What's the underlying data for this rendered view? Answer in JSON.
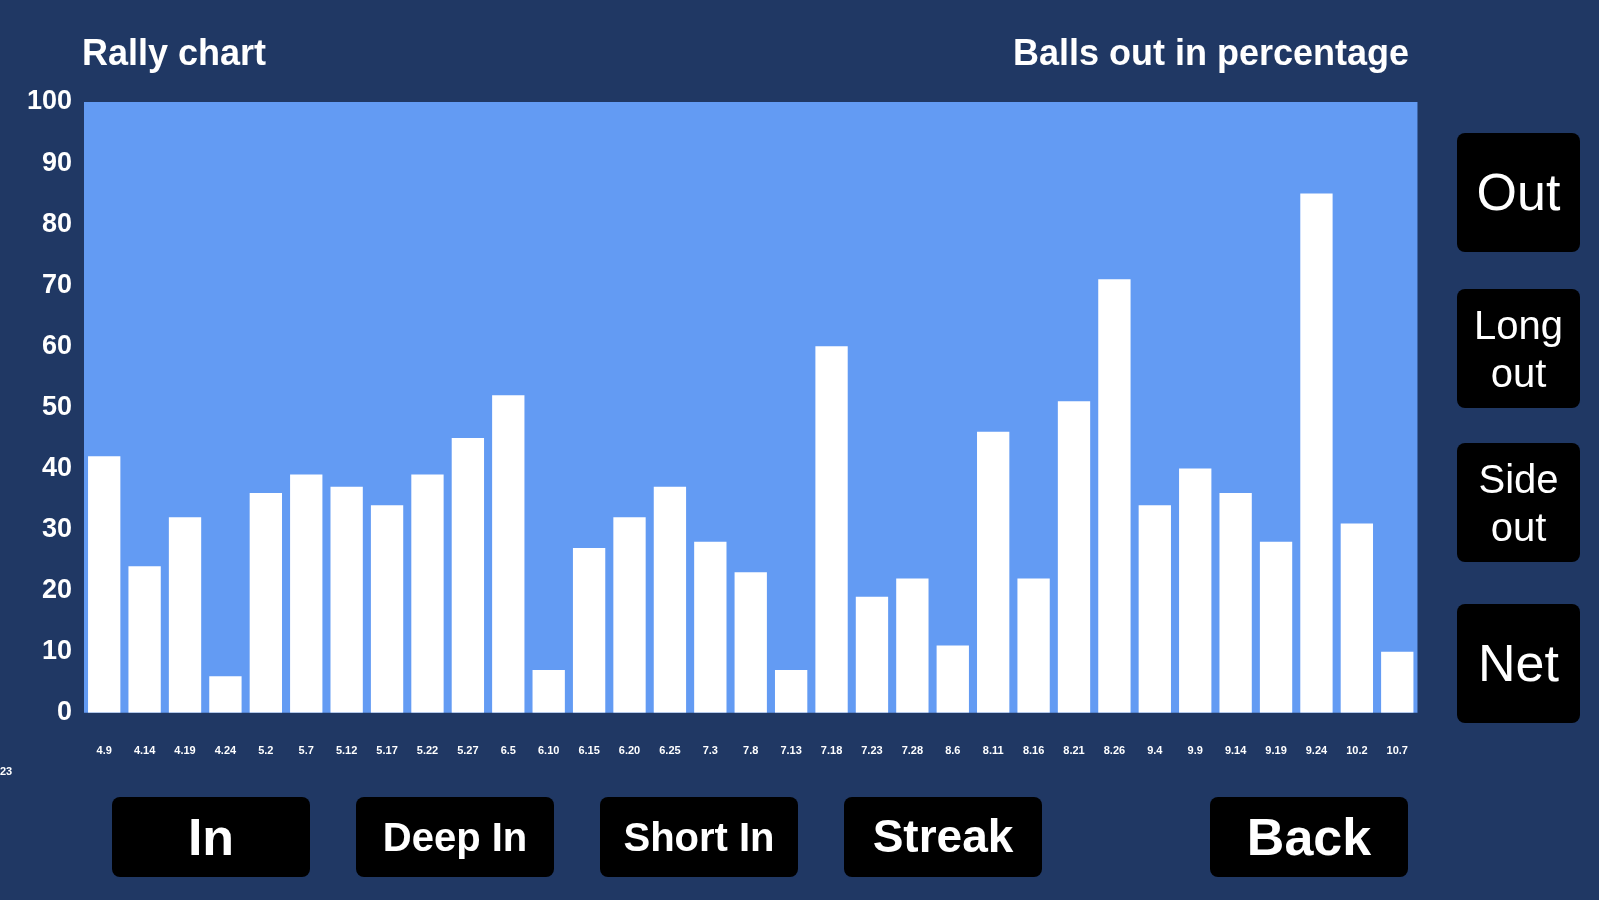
{
  "chart_data": {
    "type": "bar",
    "title": "Rally chart",
    "subtitle": "Balls out in percentage",
    "categories": [
      "4.9",
      "4.14",
      "4.19",
      "4.24",
      "5.2",
      "5.7",
      "5.12",
      "5.17",
      "5.22",
      "5.27",
      "6.5",
      "6.10",
      "6.15",
      "6.20",
      "6.25",
      "7.3",
      "7.8",
      "7.13",
      "7.18",
      "7.23",
      "7.28",
      "8.6",
      "8.11",
      "8.16",
      "8.21",
      "8.26",
      "9.4",
      "9.9",
      "9.14",
      "9.19",
      "9.24",
      "10.2",
      "10.7"
    ],
    "values": [
      42,
      24,
      32,
      6,
      36,
      39,
      37,
      34,
      39,
      45,
      52,
      7,
      27,
      32,
      37,
      28,
      23,
      7,
      60,
      19,
      22,
      11,
      46,
      22,
      51,
      71,
      34,
      40,
      36,
      28,
      85,
      31,
      10
    ],
    "color": "#ffffff",
    "ylim": [
      0,
      100
    ],
    "yticks": [
      0,
      10,
      20,
      30,
      40,
      50,
      60,
      70,
      80,
      90,
      100
    ],
    "grid": false,
    "legend": false,
    "annotations": [
      "23",
      "In",
      "Deep In",
      "Short In",
      "Streak",
      "Back",
      "Out",
      "Long out",
      "Side out",
      "Net"
    ]
  }
}
